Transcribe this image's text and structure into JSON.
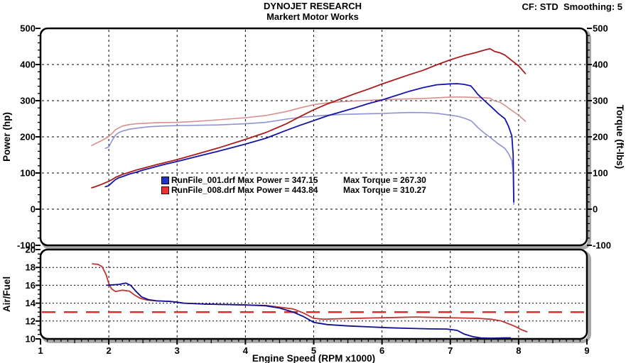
{
  "header": {
    "title": "DYNOJET RESEARCH",
    "subtitle": "Markert Motor Works",
    "settings": "CF: STD  Smoothing: 5"
  },
  "axes": {
    "power_label": "Power (hp)",
    "torque_label": "Torque (ft-lbs)",
    "af_label": "Air/Fuel",
    "x_label": "Engine Speed (RPM x1000)",
    "power_ticks": [
      500,
      400,
      300,
      200,
      100,
      0,
      -100
    ],
    "torque_ticks": [
      500,
      400,
      300,
      200,
      100,
      0,
      -100
    ],
    "af_ticks": [
      20,
      18,
      16,
      14,
      12,
      10
    ],
    "x_ticks": [
      1,
      2,
      3,
      4,
      5,
      6,
      7,
      8,
      9
    ]
  },
  "legend": {
    "rows": [
      {
        "left": "RunFile_001.drf Max Power = 347.15",
        "right": "Max Torque = 267.30",
        "color": "#2233cc"
      },
      {
        "left": "RunFile_008.drf Max Power = 443.84",
        "right": "Max Torque = 310.27",
        "color": "#ee3030"
      }
    ]
  },
  "colors": {
    "power_001": "#1414aa",
    "torque_001": "#9093d0",
    "power_008": "#aa1c1c",
    "torque_008": "#d88f8f",
    "af_001": "#101090",
    "af_008": "#c03535",
    "af_target": "#d83030",
    "grid": "#000000",
    "frame": "#000000",
    "shadow": "#a8a8a8"
  },
  "chart_data": [
    {
      "type": "line",
      "title": "Dyno run comparison - Power and Torque vs Engine Speed",
      "xlabel": "Engine Speed (RPM x1000)",
      "ylabel_left": "Power (hp)",
      "ylabel_right": "Torque (ft-lbs)",
      "xlim": [
        1,
        9
      ],
      "ylim": [
        -100,
        500
      ],
      "grid": "dashed black at every 100 (y) and every integer RPM (x)",
      "legend_position": "inside lower-left",
      "series": [
        {
          "name": "RunFile_001.drf Power (hp)",
          "color_key": "power_001",
          "points": [
            [
              1.95,
              62
            ],
            [
              2.0,
              65
            ],
            [
              2.05,
              74
            ],
            [
              2.1,
              82
            ],
            [
              2.15,
              87
            ],
            [
              2.2,
              90
            ],
            [
              2.3,
              97
            ],
            [
              2.4,
              102
            ],
            [
              2.5,
              108
            ],
            [
              2.6,
              113
            ],
            [
              2.8,
              123
            ],
            [
              3.0,
              132
            ],
            [
              3.3,
              146
            ],
            [
              3.6,
              160
            ],
            [
              4.0,
              180
            ],
            [
              4.3,
              196
            ],
            [
              4.6,
              218
            ],
            [
              4.8,
              232
            ],
            [
              5.0,
              245
            ],
            [
              5.2,
              258
            ],
            [
              5.4,
              269
            ],
            [
              5.6,
              280
            ],
            [
              5.8,
              292
            ],
            [
              6.0,
              302
            ],
            [
              6.2,
              314
            ],
            [
              6.4,
              326
            ],
            [
              6.6,
              336
            ],
            [
              6.8,
              344
            ],
            [
              7.0,
              346.5
            ],
            [
              7.1,
              347.15
            ],
            [
              7.2,
              345
            ],
            [
              7.3,
              341
            ],
            [
              7.35,
              330
            ],
            [
              7.4,
              318
            ],
            [
              7.5,
              300
            ],
            [
              7.6,
              283
            ],
            [
              7.7,
              265
            ],
            [
              7.8,
              250
            ],
            [
              7.85,
              230
            ],
            [
              7.9,
              203
            ],
            [
              7.92,
              150
            ],
            [
              7.93,
              20
            ]
          ]
        },
        {
          "name": "RunFile_001.drf Torque (ft-lbs)",
          "color_key": "torque_001",
          "points": [
            [
              1.95,
              168
            ],
            [
              2.0,
              172
            ],
            [
              2.05,
              190
            ],
            [
              2.1,
              205
            ],
            [
              2.15,
              212
            ],
            [
              2.2,
              216
            ],
            [
              2.3,
              221
            ],
            [
              2.4,
              224
            ],
            [
              2.5,
              226
            ],
            [
              2.6,
              228
            ],
            [
              2.8,
              230
            ],
            [
              3.0,
              231
            ],
            [
              3.3,
              232
            ],
            [
              3.6,
              233
            ],
            [
              4.0,
              236
            ],
            [
              4.3,
              240
            ],
            [
              4.6,
              249
            ],
            [
              4.8,
              254
            ],
            [
              5.0,
              257
            ],
            [
              5.2,
              260
            ],
            [
              5.4,
              262
            ],
            [
              5.6,
              263
            ],
            [
              5.8,
              264
            ],
            [
              6.0,
              264.5
            ],
            [
              6.2,
              266
            ],
            [
              6.4,
              267.3
            ],
            [
              6.6,
              267
            ],
            [
              6.8,
              265
            ],
            [
              7.0,
              260
            ],
            [
              7.1,
              257
            ],
            [
              7.2,
              252
            ],
            [
              7.3,
              245
            ],
            [
              7.35,
              236
            ],
            [
              7.4,
              226
            ],
            [
              7.5,
              210
            ],
            [
              7.6,
              196
            ],
            [
              7.7,
              181
            ],
            [
              7.8,
              168
            ],
            [
              7.85,
              154
            ],
            [
              7.9,
              135
            ],
            [
              7.92,
              99
            ],
            [
              7.93,
              13
            ]
          ]
        },
        {
          "name": "RunFile_008.drf Power (hp)",
          "color_key": "power_008",
          "points": [
            [
              1.75,
              59
            ],
            [
              1.8,
              62
            ],
            [
              1.9,
              69
            ],
            [
              2.0,
              77
            ],
            [
              2.05,
              82
            ],
            [
              2.1,
              88
            ],
            [
              2.2,
              96
            ],
            [
              2.3,
              102
            ],
            [
              2.4,
              108
            ],
            [
              2.5,
              113
            ],
            [
              2.7,
              123
            ],
            [
              3.0,
              137
            ],
            [
              3.3,
              153
            ],
            [
              3.6,
              169
            ],
            [
              4.0,
              193
            ],
            [
              4.3,
              212
            ],
            [
              4.6,
              236
            ],
            [
              4.8,
              256
            ],
            [
              5.0,
              275
            ],
            [
              5.2,
              291
            ],
            [
              5.4,
              305
            ],
            [
              5.6,
              319
            ],
            [
              5.8,
              332
            ],
            [
              6.0,
              346
            ],
            [
              6.2,
              359
            ],
            [
              6.4,
              372
            ],
            [
              6.6,
              384
            ],
            [
              6.8,
              399
            ],
            [
              7.0,
              413
            ],
            [
              7.1,
              419
            ],
            [
              7.2,
              425
            ],
            [
              7.35,
              432
            ],
            [
              7.5,
              440
            ],
            [
              7.58,
              443.84
            ],
            [
              7.65,
              436
            ],
            [
              7.72,
              433
            ],
            [
              7.8,
              426
            ],
            [
              7.9,
              411
            ],
            [
              8.0,
              396
            ],
            [
              8.1,
              375
            ]
          ]
        },
        {
          "name": "RunFile_008.drf Torque (ft-lbs)",
          "color_key": "torque_008",
          "points": [
            [
              1.75,
              176
            ],
            [
              1.8,
              181
            ],
            [
              1.9,
              190
            ],
            [
              2.0,
              201
            ],
            [
              2.05,
              210
            ],
            [
              2.1,
              220
            ],
            [
              2.2,
              230
            ],
            [
              2.3,
              234
            ],
            [
              2.4,
              236
            ],
            [
              2.5,
              237
            ],
            [
              2.7,
              239
            ],
            [
              3.0,
              240
            ],
            [
              3.3,
              243
            ],
            [
              3.6,
              247
            ],
            [
              4.0,
              253
            ],
            [
              4.3,
              259
            ],
            [
              4.6,
              270
            ],
            [
              4.8,
              280
            ],
            [
              5.0,
              289
            ],
            [
              5.2,
              294
            ],
            [
              5.4,
              297
            ],
            [
              5.6,
              299
            ],
            [
              5.8,
              301
            ],
            [
              6.0,
              303
            ],
            [
              6.2,
              304
            ],
            [
              6.4,
              305
            ],
            [
              6.6,
              306
            ],
            [
              6.8,
              308
            ],
            [
              7.0,
              310
            ],
            [
              7.1,
              310.27
            ],
            [
              7.2,
              310
            ],
            [
              7.35,
              309
            ],
            [
              7.5,
              308
            ],
            [
              7.58,
              307
            ],
            [
              7.65,
              299
            ],
            [
              7.72,
              296
            ],
            [
              7.8,
              287
            ],
            [
              7.9,
              273
            ],
            [
              8.0,
              260
            ],
            [
              8.1,
              243
            ]
          ]
        }
      ],
      "annotations": [
        "RunFile_001.drf Max Power = 347.15",
        "Max Torque = 267.30",
        "RunFile_008.drf Max Power = 443.84",
        "Max Torque = 310.27"
      ]
    },
    {
      "type": "line",
      "title": "Air/Fuel ratio vs Engine Speed",
      "xlabel": "Engine Speed (RPM x1000)",
      "ylabel_left": "Air/Fuel",
      "xlim": [
        1,
        9
      ],
      "ylim": [
        10,
        20
      ],
      "grid": "dotted black at 12,14,16,18 (y) and dashed at every integer RPM (x)",
      "reference_line": {
        "y": 13,
        "style": "long-dash",
        "color_key": "af_target"
      },
      "series": [
        {
          "name": "RunFile_001.drf Air/Fuel",
          "color_key": "af_001",
          "points": [
            [
              1.97,
              16.0
            ],
            [
              2.05,
              16.05
            ],
            [
              2.15,
              16.1
            ],
            [
              2.25,
              16.25
            ],
            [
              2.32,
              16.0
            ],
            [
              2.4,
              15.3
            ],
            [
              2.48,
              14.7
            ],
            [
              2.58,
              14.4
            ],
            [
              2.7,
              14.25
            ],
            [
              2.9,
              14.2
            ],
            [
              3.1,
              14.0
            ],
            [
              3.4,
              13.9
            ],
            [
              3.7,
              13.85
            ],
            [
              4.0,
              13.8
            ],
            [
              4.3,
              13.7
            ],
            [
              4.5,
              13.45
            ],
            [
              4.7,
              13.0
            ],
            [
              4.85,
              12.5
            ],
            [
              5.0,
              11.85
            ],
            [
              5.2,
              11.6
            ],
            [
              5.5,
              11.45
            ],
            [
              5.8,
              11.35
            ],
            [
              6.1,
              11.25
            ],
            [
              6.4,
              11.18
            ],
            [
              6.7,
              11.12
            ],
            [
              6.95,
              11.1
            ],
            [
              7.1,
              10.95
            ],
            [
              7.2,
              10.55
            ],
            [
              7.33,
              10.25
            ],
            [
              7.45,
              10.1
            ],
            [
              7.6,
              10.08
            ],
            [
              7.75,
              10.1
            ],
            [
              7.88,
              10.12
            ]
          ]
        },
        {
          "name": "RunFile_008.drf Air/Fuel",
          "color_key": "af_008",
          "points": [
            [
              1.76,
              18.4
            ],
            [
              1.84,
              18.35
            ],
            [
              1.9,
              18.1
            ],
            [
              1.96,
              17.2
            ],
            [
              2.0,
              16.2
            ],
            [
              2.04,
              15.6
            ],
            [
              2.1,
              15.3
            ],
            [
              2.2,
              15.45
            ],
            [
              2.3,
              15.35
            ],
            [
              2.38,
              14.9
            ],
            [
              2.46,
              14.55
            ],
            [
              2.56,
              14.35
            ],
            [
              2.7,
              14.25
            ],
            [
              2.9,
              14.2
            ],
            [
              3.1,
              14.0
            ],
            [
              3.4,
              13.9
            ],
            [
              3.7,
              13.85
            ],
            [
              4.0,
              13.8
            ],
            [
              4.3,
              13.75
            ],
            [
              4.5,
              13.55
            ],
            [
              4.7,
              13.35
            ],
            [
              4.85,
              12.9
            ],
            [
              5.0,
              12.3
            ],
            [
              5.15,
              12.2
            ],
            [
              5.35,
              12.25
            ],
            [
              5.6,
              12.3
            ],
            [
              5.9,
              12.35
            ],
            [
              6.2,
              12.4
            ],
            [
              6.5,
              12.45
            ],
            [
              6.8,
              12.4
            ],
            [
              7.1,
              12.35
            ],
            [
              7.4,
              12.3
            ],
            [
              7.6,
              12.2
            ],
            [
              7.75,
              12.0
            ],
            [
              7.85,
              11.7
            ],
            [
              7.95,
              11.4
            ],
            [
              8.05,
              11.0
            ],
            [
              8.12,
              10.8
            ]
          ]
        }
      ]
    }
  ]
}
